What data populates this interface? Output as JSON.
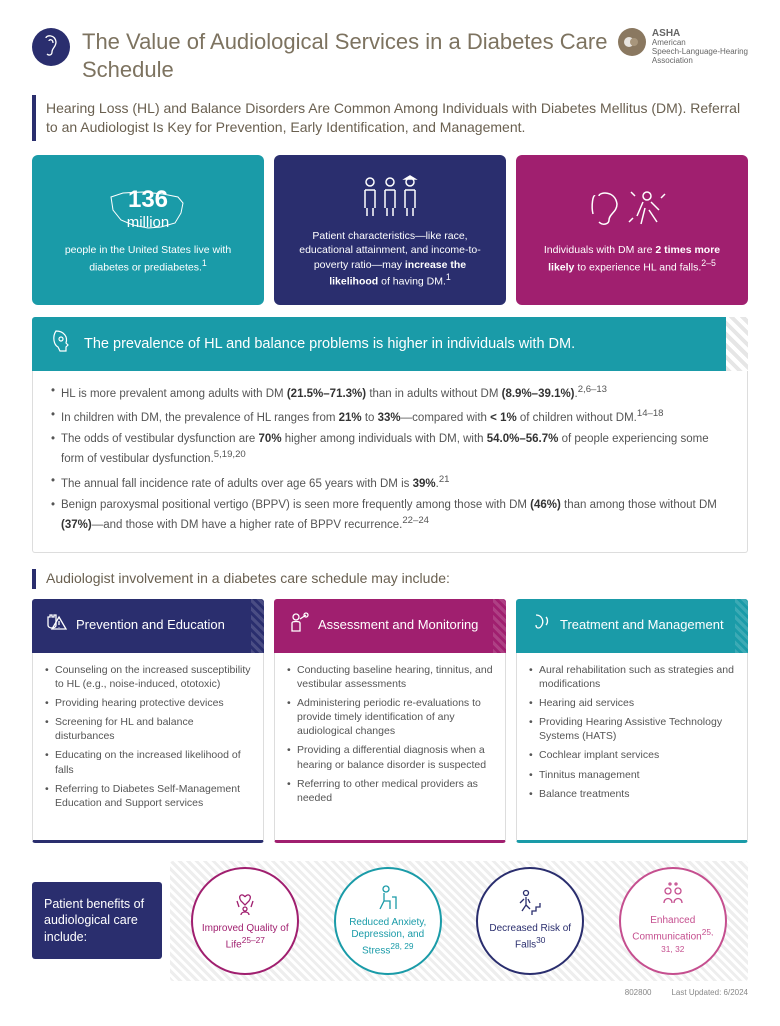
{
  "colors": {
    "navy": "#2a2e6e",
    "teal": "#1a9ba8",
    "magenta": "#a01f6f",
    "pink": "#c54f8f",
    "tan_text": "#7d7360"
  },
  "header": {
    "title": "The Value of Audiological Services in a Diabetes Care Schedule",
    "logo_name": "ASHA",
    "logo_sub": "American\nSpeech-Language-Hearing\nAssociation"
  },
  "intro": "Hearing Loss (HL) and Balance Disorders Are Common Among Individuals with Diabetes Mellitus (DM). Referral to an Audiologist Is Key for Prevention, Early Identification, and Management.",
  "cards": {
    "c1": {
      "big1": "136",
      "big2": "million",
      "sub": "people in the United States live with diabetes or prediabetes.",
      "sup": "1"
    },
    "c2": {
      "text_pre": "Patient characteristics—like race, educational attainment, and income-to-poverty ratio—may ",
      "bold": "increase the likelihood",
      "text_post": " of having DM.",
      "sup": "1"
    },
    "c3": {
      "text_pre": "Individuals with DM are ",
      "bold": "2 times more likely",
      "text_post": " to experience HL and falls.",
      "sup": "2–5"
    }
  },
  "prevalence": {
    "title": "The prevalence of HL and balance problems is higher in individuals with DM.",
    "items": [
      {
        "html": "HL is more prevalent among adults with DM <b>(21.5%–71.3%)</b> than in adults without DM <b>(8.9%–39.1%)</b>.<sup>2,6–13</sup>"
      },
      {
        "html": "In children with DM, the prevalence of HL ranges from <b>21%</b> to <b>33%</b>—compared with <b>< 1%</b> of children without DM.<sup>14–18</sup>"
      },
      {
        "html": "The odds of vestibular dysfunction are <b>70%</b> higher among individuals with DM, with <b>54.0%–56.7%</b> of people experiencing some form of vestibular dysfunction.<sup>5,19,20</sup>"
      },
      {
        "html": "The annual fall incidence rate of adults over age 65 years with DM is <b>39%</b>.<sup>21</sup>"
      },
      {
        "html": "Benign paroxysmal positional vertigo (BPPV) is seen more frequently among those with DM <b>(46%)</b> than among those without DM <b>(37%)</b>—and those with DM have a higher rate of BPPV recurrence.<sup>22–24</sup>"
      }
    ]
  },
  "involvement": {
    "header": "Audiologist involvement in a diabetes care schedule may include:",
    "cols": [
      {
        "title": "Prevention and Education",
        "items": [
          "Counseling on the increased susceptibility to HL (e.g., noise-induced, ototoxic)",
          "Providing hearing protective devices",
          "Screening for HL and balance disturbances",
          "Educating on the increased likelihood of falls",
          "Referring to Diabetes Self-Management Education and Support services"
        ]
      },
      {
        "title": "Assessment and Monitoring",
        "items": [
          "Conducting baseline hearing, tinnitus, and vestibular assessments",
          "Administering periodic re-evaluations to provide timely identification of any audiological changes",
          "Providing a differential diagnosis when a hearing or balance disorder is suspected",
          "Referring to other medical providers as needed"
        ]
      },
      {
        "title": "Treatment and Management",
        "items": [
          "Aural rehabilitation such as strategies and modifications",
          "Hearing aid services",
          "Providing Hearing Assistive Technology Systems (HATS)",
          "Cochlear implant services",
          "Tinnitus management",
          "Balance treatments"
        ]
      }
    ]
  },
  "benefits": {
    "label": "Patient benefits of audiological care include:",
    "items": [
      {
        "text": "Improved Quality of Life",
        "sup": "25–27"
      },
      {
        "text": "Reduced Anxiety, Depression, and Stress",
        "sup": "28, 29"
      },
      {
        "text": "Decreased Risk of Falls",
        "sup": "30"
      },
      {
        "text": "Enhanced Communication",
        "sup": "25, 31, 32"
      }
    ]
  },
  "footer": {
    "code": "802800",
    "updated": "Last Updated: 6/2024"
  }
}
